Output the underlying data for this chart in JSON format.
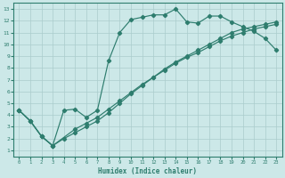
{
  "xlabel": "Humidex (Indice chaleur)",
  "bg_color": "#cce8e8",
  "line_color": "#2e7d6e",
  "grid_color": "#aacccc",
  "xlim": [
    -0.5,
    23.5
  ],
  "ylim": [
    0.5,
    13.5
  ],
  "xticks": [
    0,
    1,
    2,
    3,
    4,
    5,
    6,
    7,
    8,
    9,
    10,
    11,
    12,
    13,
    14,
    15,
    16,
    17,
    18,
    19,
    20,
    21,
    22,
    23
  ],
  "yticks": [
    1,
    2,
    3,
    4,
    5,
    6,
    7,
    8,
    9,
    10,
    11,
    12,
    13
  ],
  "curve1_x": [
    0,
    1,
    2,
    3,
    4,
    5,
    6,
    7,
    8,
    9,
    10,
    11,
    12,
    13,
    14,
    15,
    16,
    17,
    18,
    19,
    20,
    21,
    22,
    23
  ],
  "curve1_y": [
    4.4,
    3.5,
    2.2,
    1.4,
    4.4,
    4.5,
    3.8,
    4.4,
    8.6,
    11.0,
    12.1,
    12.3,
    12.5,
    12.5,
    13.0,
    11.9,
    11.8,
    12.4,
    12.4,
    11.9,
    11.5,
    11.1,
    10.5,
    9.5
  ],
  "curve2_x": [
    0,
    1,
    2,
    3,
    5,
    6,
    7,
    8,
    9,
    10,
    11,
    12,
    13,
    14,
    15,
    16,
    17,
    18,
    19,
    20,
    21,
    22,
    23
  ],
  "curve2_y": [
    4.4,
    3.5,
    2.2,
    1.4,
    2.8,
    3.3,
    3.8,
    4.5,
    5.2,
    5.9,
    6.6,
    7.2,
    7.8,
    8.4,
    8.9,
    9.3,
    9.8,
    10.3,
    10.7,
    11.0,
    11.3,
    11.5,
    11.7
  ],
  "curve3_x": [
    0,
    1,
    2,
    3,
    4,
    5,
    6,
    7,
    8,
    9,
    10,
    11,
    12,
    13,
    14,
    15,
    16,
    17,
    18,
    19,
    20,
    21,
    22,
    23
  ],
  "curve3_y": [
    4.4,
    3.5,
    2.2,
    1.4,
    2.0,
    2.5,
    3.0,
    3.5,
    4.2,
    5.0,
    5.8,
    6.5,
    7.2,
    7.9,
    8.5,
    9.0,
    9.5,
    10.0,
    10.5,
    11.0,
    11.3,
    11.5,
    11.7,
    11.9
  ]
}
